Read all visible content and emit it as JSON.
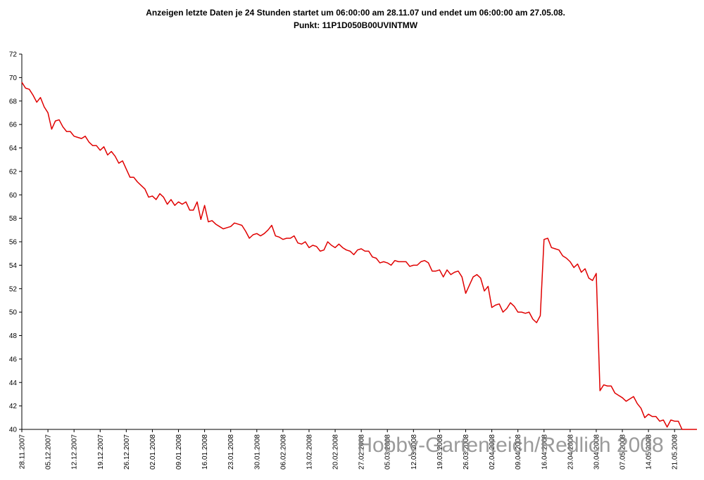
{
  "chart_data": {
    "type": "line",
    "title": "Anzeigen  letzte Daten je  24 Stunden startet um 06:00:00 am  28.11.07 und endet um 06:00:00 am  27.05.08.",
    "subtitle": "Punkt: 11P1D050B00UVINTMW",
    "annotation": "Hobby-Gartenteich/Redlich 2008",
    "categories": [
      "28.11.2007",
      null,
      null,
      null,
      null,
      null,
      null,
      "05.12.2007",
      null,
      null,
      null,
      null,
      null,
      null,
      "12.12.2007",
      null,
      null,
      null,
      null,
      null,
      null,
      "19.12.2007",
      null,
      null,
      null,
      null,
      null,
      null,
      "26.12.2007",
      null,
      null,
      null,
      null,
      null,
      null,
      "02.01.2008",
      null,
      null,
      null,
      null,
      null,
      null,
      "09.01.2008",
      null,
      null,
      null,
      null,
      null,
      null,
      "16.01.2008",
      null,
      null,
      null,
      null,
      null,
      null,
      "23.01.2008",
      null,
      null,
      null,
      null,
      null,
      null,
      "30.01.2008",
      null,
      null,
      null,
      null,
      null,
      null,
      "06.02.2008",
      null,
      null,
      null,
      null,
      null,
      null,
      "13.02.2008",
      null,
      null,
      null,
      null,
      null,
      null,
      "20.02.2008",
      null,
      null,
      null,
      null,
      null,
      null,
      "27.02.2008",
      null,
      null,
      null,
      null,
      null,
      null,
      "05.03.2008",
      null,
      null,
      null,
      null,
      null,
      null,
      "12.03.2008",
      null,
      null,
      null,
      null,
      null,
      null,
      "19.03.2008",
      null,
      null,
      null,
      null,
      null,
      null,
      "26.03.2008",
      null,
      null,
      null,
      null,
      null,
      null,
      "02.04.2008",
      null,
      null,
      null,
      null,
      null,
      null,
      "09.04.2008",
      null,
      null,
      null,
      null,
      null,
      null,
      "16.04.2008",
      null,
      null,
      null,
      null,
      null,
      null,
      "23.04.2008",
      null,
      null,
      null,
      null,
      null,
      null,
      "30.04.2008",
      null,
      null,
      null,
      null,
      null,
      null,
      "07.05.2008",
      null,
      null,
      null,
      null,
      null,
      null,
      "14.05.2008",
      null,
      null,
      null,
      null,
      null,
      null,
      "21.05.2008",
      null,
      null,
      null,
      null,
      null,
      null
    ],
    "values": [
      69.6,
      69.1,
      69.0,
      68.5,
      67.9,
      68.3,
      67.5,
      67.0,
      65.6,
      66.3,
      66.4,
      65.8,
      65.4,
      65.4,
      65.0,
      64.9,
      64.8,
      65.0,
      64.5,
      64.2,
      64.2,
      63.8,
      64.1,
      63.4,
      63.7,
      63.3,
      62.7,
      62.9,
      62.2,
      61.5,
      61.5,
      61.1,
      60.8,
      60.5,
      59.8,
      59.9,
      59.6,
      60.1,
      59.8,
      59.2,
      59.6,
      59.1,
      59.4,
      59.2,
      59.4,
      58.7,
      58.7,
      59.4,
      57.9,
      59.1,
      57.7,
      57.8,
      57.5,
      57.3,
      57.1,
      57.2,
      57.3,
      57.6,
      57.5,
      57.4,
      56.9,
      56.3,
      56.6,
      56.7,
      56.5,
      56.7,
      57.0,
      57.4,
      56.5,
      56.4,
      56.2,
      56.3,
      56.3,
      56.5,
      55.9,
      55.8,
      56.0,
      55.5,
      55.7,
      55.6,
      55.2,
      55.3,
      56.0,
      55.7,
      55.5,
      55.8,
      55.5,
      55.3,
      55.2,
      54.9,
      55.3,
      55.4,
      55.2,
      55.2,
      54.7,
      54.6,
      54.2,
      54.3,
      54.2,
      54.0,
      54.4,
      54.3,
      54.3,
      54.3,
      53.9,
      54.0,
      54.0,
      54.3,
      54.4,
      54.2,
      53.5,
      53.5,
      53.6,
      53.0,
      53.6,
      53.2,
      53.4,
      53.5,
      53.0,
      51.6,
      52.3,
      53.0,
      53.2,
      52.9,
      51.8,
      52.2,
      50.4,
      50.6,
      50.7,
      50.0,
      50.3,
      50.8,
      50.5,
      50.0,
      50.0,
      49.9,
      50.0,
      49.4,
      49.1,
      49.7,
      56.2,
      56.3,
      55.5,
      55.4,
      55.3,
      54.8,
      54.6,
      54.3,
      53.8,
      54.1,
      53.4,
      53.7,
      52.9,
      52.7,
      53.3,
      43.3,
      43.8,
      43.7,
      43.7,
      43.1,
      42.9,
      42.7,
      42.4,
      42.6,
      42.8,
      42.2,
      41.8,
      41.0,
      41.3,
      41.1,
      41.1,
      40.7,
      40.8,
      40.2,
      40.8,
      40.7,
      40.7,
      40.0,
      40.0,
      40.0,
      40.0,
      40.0
    ],
    "color": "#e00000",
    "ylim": [
      40,
      72
    ],
    "yticks": [
      40,
      42,
      44,
      46,
      48,
      50,
      52,
      54,
      56,
      58,
      60,
      62,
      64,
      66,
      68,
      70,
      72
    ],
    "grid": false
  }
}
